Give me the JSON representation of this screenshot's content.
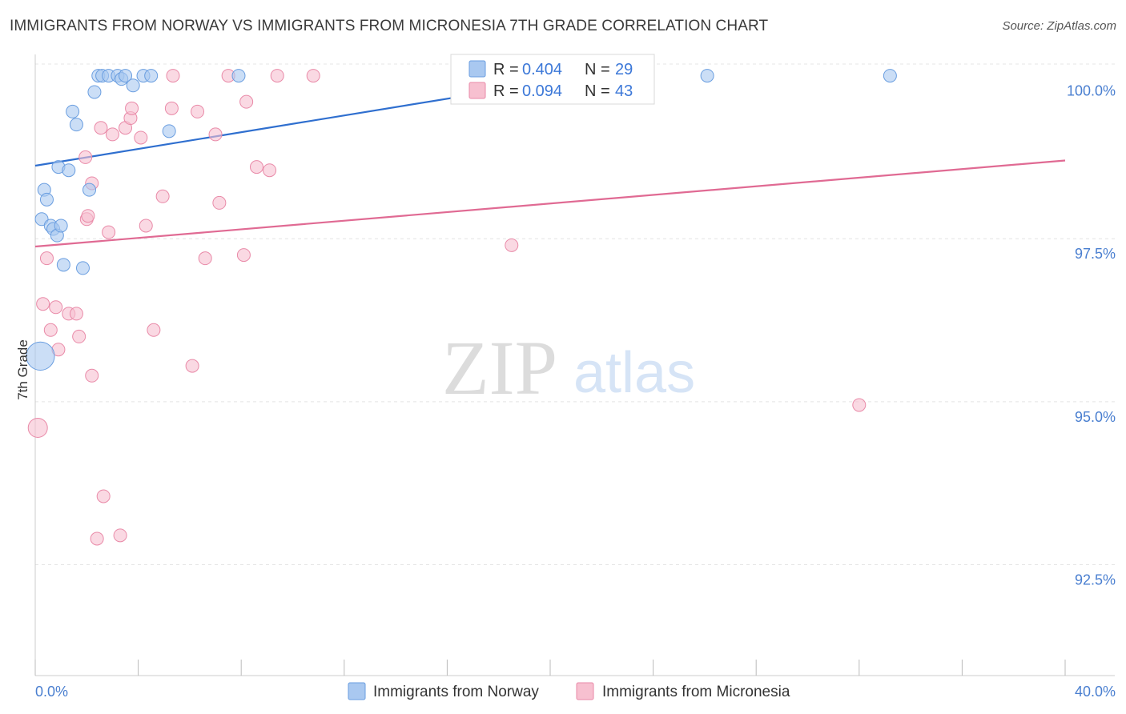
{
  "title": "IMMIGRANTS FROM NORWAY VS IMMIGRANTS FROM MICRONESIA 7TH GRADE CORRELATION CHART",
  "source": "Source: ZipAtlas.com",
  "watermark": {
    "zip": "ZIP",
    "atlas": "atlas"
  },
  "legend_box": {
    "rows": [
      {
        "r_label": "R =",
        "r_value": "0.404",
        "n_label": "N =",
        "n_value": "29"
      },
      {
        "r_label": "R =",
        "r_value": "0.094",
        "n_label": "N =",
        "n_value": "43"
      }
    ]
  },
  "chart_data": {
    "type": "scatter",
    "title": "IMMIGRANTS FROM NORWAY VS IMMIGRANTS FROM MICRONESIA 7TH GRADE CORRELATION CHART",
    "xlabel": "",
    "ylabel": "7th Grade",
    "xlim": [
      0,
      40
    ],
    "ylim": [
      90.8,
      100.4
    ],
    "x_tick_labels": [
      {
        "value": 0,
        "label": "0.0%"
      },
      {
        "value": 40,
        "label": "40.0%"
      }
    ],
    "y_tick_labels": [
      {
        "value": 100,
        "label": "100.0%"
      },
      {
        "value": 97.5,
        "label": "97.5%"
      },
      {
        "value": 95,
        "label": "95.0%"
      },
      {
        "value": 92.5,
        "label": "92.5%"
      }
    ],
    "grid": true,
    "colors": {
      "norway_fill": "#a9c8f0",
      "norway_stroke": "#6a9ee0",
      "norway_line": "#2f6fcf",
      "micronesia_fill": "#f7c0d0",
      "micronesia_stroke": "#e98aa8",
      "micronesia_line": "#e06a93",
      "tick_label": "#4a7fd0"
    },
    "series": [
      {
        "name": "Immigrants from Norway",
        "r": 0.404,
        "n": 29,
        "trend": {
          "x0": 0,
          "y0": 98.62,
          "x1": 21.5,
          "y1": 100.0
        },
        "points": [
          [
            0.2,
            95.7,
            2.2
          ],
          [
            0.25,
            97.8,
            1
          ],
          [
            0.35,
            98.25,
            1
          ],
          [
            0.45,
            98.1,
            1
          ],
          [
            0.6,
            97.7,
            1
          ],
          [
            0.7,
            97.65,
            1
          ],
          [
            0.85,
            97.55,
            1
          ],
          [
            0.9,
            98.6,
            1
          ],
          [
            1.0,
            97.7,
            1
          ],
          [
            1.1,
            97.1,
            1
          ],
          [
            1.3,
            98.55,
            1
          ],
          [
            1.45,
            99.45,
            1
          ],
          [
            1.6,
            99.25,
            1
          ],
          [
            1.85,
            97.05,
            1
          ],
          [
            2.1,
            98.25,
            1
          ],
          [
            2.3,
            99.75,
            1
          ],
          [
            2.45,
            100.0,
            1
          ],
          [
            2.6,
            100.0,
            1
          ],
          [
            2.85,
            100.0,
            1
          ],
          [
            3.2,
            100.0,
            1
          ],
          [
            3.35,
            99.95,
            1
          ],
          [
            3.5,
            100.0,
            1
          ],
          [
            3.8,
            99.85,
            1
          ],
          [
            4.2,
            100.0,
            1
          ],
          [
            4.5,
            100.0,
            1
          ],
          [
            5.2,
            99.15,
            1
          ],
          [
            7.9,
            100.0,
            1
          ],
          [
            26.1,
            100.0,
            1
          ],
          [
            33.2,
            100.0,
            1
          ]
        ]
      },
      {
        "name": "Immigrants from Micronesia",
        "r": 0.094,
        "n": 43,
        "trend": {
          "x0": 0,
          "y0": 97.38,
          "x1": 40,
          "y1": 98.7
        },
        "points": [
          [
            0.1,
            94.6,
            1.5
          ],
          [
            0.3,
            96.5,
            1
          ],
          [
            0.45,
            97.2,
            1
          ],
          [
            0.6,
            96.1,
            1
          ],
          [
            0.8,
            96.45,
            1
          ],
          [
            0.9,
            95.8,
            1
          ],
          [
            1.3,
            96.35,
            1
          ],
          [
            1.6,
            96.35,
            1
          ],
          [
            1.7,
            96.0,
            1
          ],
          [
            1.95,
            98.75,
            1
          ],
          [
            2.0,
            97.8,
            1
          ],
          [
            2.05,
            97.85,
            1
          ],
          [
            2.2,
            98.35,
            1
          ],
          [
            2.2,
            95.4,
            1
          ],
          [
            2.4,
            92.9,
            1
          ],
          [
            2.55,
            99.2,
            1
          ],
          [
            2.65,
            93.55,
            1
          ],
          [
            2.85,
            97.6,
            1
          ],
          [
            3.0,
            99.1,
            1
          ],
          [
            3.3,
            92.95,
            1
          ],
          [
            3.5,
            99.2,
            1
          ],
          [
            3.7,
            99.35,
            1
          ],
          [
            3.75,
            99.5,
            1
          ],
          [
            4.1,
            99.05,
            1
          ],
          [
            4.3,
            97.7,
            1
          ],
          [
            4.6,
            96.1,
            1
          ],
          [
            4.95,
            98.15,
            1
          ],
          [
            5.3,
            99.5,
            1
          ],
          [
            5.35,
            100.0,
            1
          ],
          [
            6.1,
            95.55,
            1
          ],
          [
            6.3,
            99.45,
            1
          ],
          [
            6.6,
            97.2,
            1
          ],
          [
            7.0,
            99.1,
            1
          ],
          [
            7.15,
            98.05,
            1
          ],
          [
            7.5,
            100.0,
            1
          ],
          [
            8.1,
            97.25,
            1
          ],
          [
            8.2,
            99.6,
            1
          ],
          [
            8.6,
            98.6,
            1
          ],
          [
            9.1,
            98.55,
            1
          ],
          [
            9.4,
            100.0,
            1
          ],
          [
            10.8,
            100.0,
            1
          ],
          [
            18.5,
            97.4,
            1
          ],
          [
            32.0,
            94.95,
            1
          ]
        ]
      }
    ]
  }
}
